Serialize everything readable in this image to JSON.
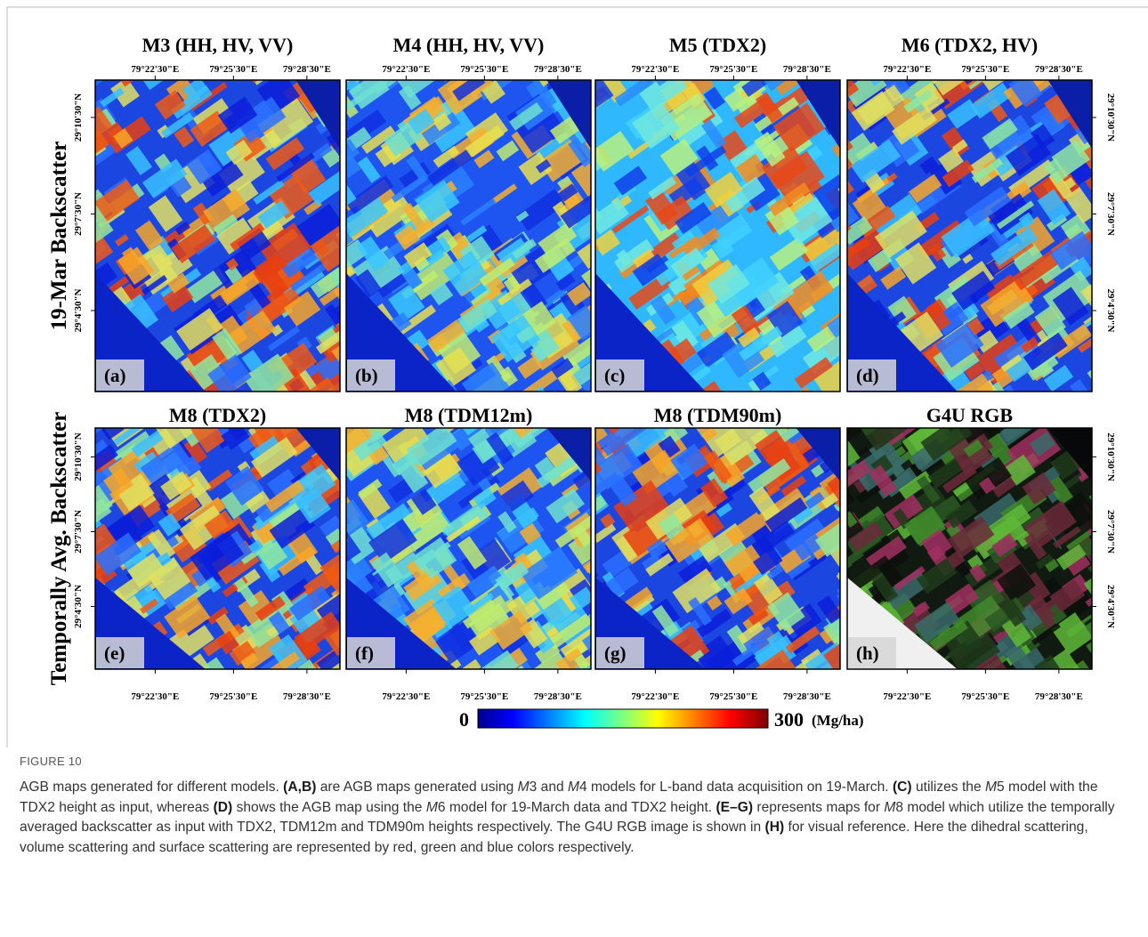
{
  "figure": {
    "row_labels": [
      "19-Mar Backscatter",
      "Temporally Avg. Backscatter"
    ],
    "panels": [
      {
        "title": "M3 (HH, HV, VV)",
        "letter": "(a)",
        "style": "jet"
      },
      {
        "title": "M4 (HH, HV, VV)",
        "letter": "(b)",
        "style": "jet-low"
      },
      {
        "title": "M5 (TDX2)",
        "letter": "(c)",
        "style": "jet-cyan"
      },
      {
        "title": "M6 (TDX2, HV)",
        "letter": "(d)",
        "style": "jet"
      },
      {
        "title": "M8 (TDX2)",
        "letter": "(e)",
        "style": "jet"
      },
      {
        "title": "M8 (TDM12m)",
        "letter": "(f)",
        "style": "jet-low"
      },
      {
        "title": "M8 (TDM90m)",
        "letter": "(g)",
        "style": "jet"
      },
      {
        "title": "G4U RGB",
        "letter": "(h)",
        "style": "rgb"
      }
    ],
    "lon_ticks": [
      "79°22'30\"E",
      "79°25'30\"E",
      "79°28'30\"E"
    ],
    "lat_ticks": [
      "29°10'30\"N",
      "29°7'30\"N",
      "29°4'30\"N"
    ],
    "colorbar": {
      "min": 0,
      "max": 300,
      "unit": "(Mg/ha)"
    }
  },
  "caption": {
    "label": "FIGURE 10",
    "runs": [
      {
        "text": "AGB maps generated for different models. "
      },
      {
        "text": "(A,B)",
        "style": "bold"
      },
      {
        "text": " are AGB maps generated using "
      },
      {
        "text": "M",
        "style": "italic"
      },
      {
        "text": "3 and "
      },
      {
        "text": "M",
        "style": "italic"
      },
      {
        "text": "4 models for L-band data acquisition on 19-March. "
      },
      {
        "text": "(C)",
        "style": "bold"
      },
      {
        "text": " utilizes the "
      },
      {
        "text": "M",
        "style": "italic"
      },
      {
        "text": "5 model with the TDX2 height as input, whereas "
      },
      {
        "text": "(D)",
        "style": "bold"
      },
      {
        "text": " shows the AGB map using the "
      },
      {
        "text": "M",
        "style": "italic"
      },
      {
        "text": "6 model for 19-March data and TDX2 height. "
      },
      {
        "text": "(E–G)",
        "style": "bold"
      },
      {
        "text": " represents maps for "
      },
      {
        "text": "M",
        "style": "italic"
      },
      {
        "text": "8 model which utilize the temporally averaged backscatter as input with TDX2, TDM12m and TDM90m heights respectively. The G4U RGB image is shown in "
      },
      {
        "text": "(H)",
        "style": "bold"
      },
      {
        "text": " for visual reference. Here the dihedral scattering, volume scattering and surface scattering are represented by red, green and blue colors respectively."
      }
    ]
  }
}
